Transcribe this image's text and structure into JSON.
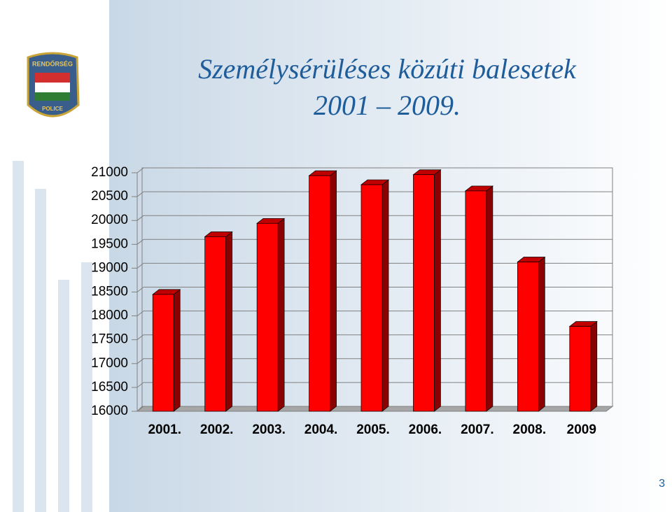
{
  "chart_data": {
    "type": "bar3d",
    "title": [
      "Személysérüléses közúti balesetek",
      "2001 – 2009."
    ],
    "categories": [
      "2001.",
      "2002.",
      "2003.",
      "2004.",
      "2005.",
      "2006.",
      "2007.",
      "2008.",
      "2009"
    ],
    "values": [
      18450,
      19660,
      19940,
      20940,
      20750,
      20960,
      20620,
      19130,
      17780
    ],
    "color": "#ff0000",
    "ylim": [
      16000,
      21000
    ],
    "yticks": [
      16000,
      16500,
      17000,
      17500,
      18000,
      18500,
      19000,
      19500,
      20000,
      20500,
      21000
    ],
    "grid": true
  },
  "logo": {
    "top": "RENDŐRSÉG",
    "bottom": "POLICE"
  },
  "slide_number": "3"
}
